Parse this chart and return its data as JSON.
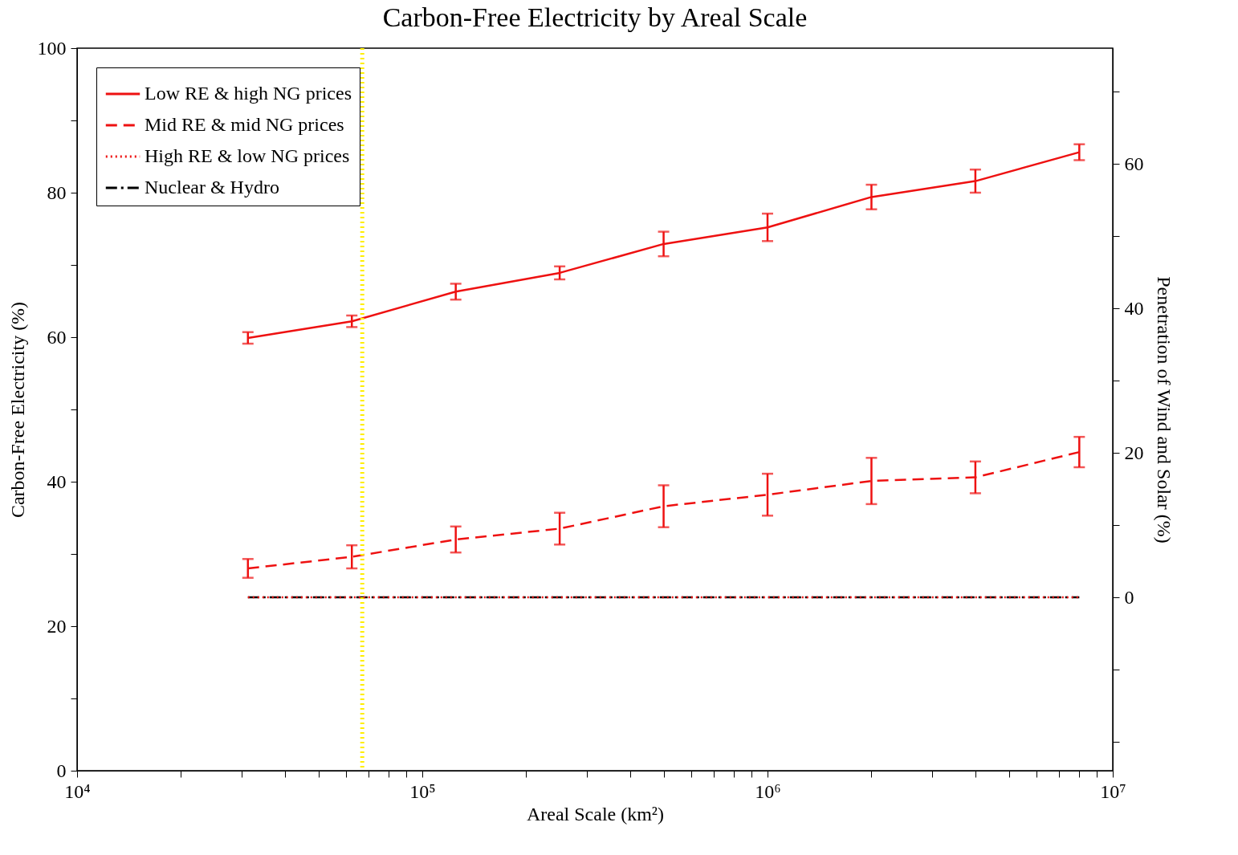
{
  "chart_data": {
    "type": "line",
    "title": "Carbon-Free Electricity by Areal Scale",
    "xlabel": "Areal Scale (km²)",
    "ylabel": "Carbon-Free Electricity (%)",
    "y2label": "Penetration of Wind and Solar (%)",
    "x": [
      31250,
      62500,
      125000,
      250000,
      500000,
      1000000,
      2000000,
      4000000,
      8000000
    ],
    "log": "x",
    "xlim": [
      10000,
      10000000
    ],
    "xticks": [
      {
        "value": 10000,
        "label": "10⁴"
      },
      {
        "value": 20000,
        "label": null
      },
      {
        "value": 30000,
        "label": null
      },
      {
        "value": 40000,
        "label": null
      },
      {
        "value": 50000,
        "label": null
      },
      {
        "value": 60000,
        "label": null
      },
      {
        "value": 70000,
        "label": null
      },
      {
        "value": 80000,
        "label": null
      },
      {
        "value": 90000,
        "label": null
      },
      {
        "value": 100000,
        "label": "10⁵"
      },
      {
        "value": 200000,
        "label": null
      },
      {
        "value": 300000,
        "label": null
      },
      {
        "value": 400000,
        "label": null
      },
      {
        "value": 500000,
        "label": null
      },
      {
        "value": 600000,
        "label": null
      },
      {
        "value": 700000,
        "label": null
      },
      {
        "value": 800000,
        "label": null
      },
      {
        "value": 900000,
        "label": null
      },
      {
        "value": 1000000,
        "label": "10⁶"
      },
      {
        "value": 2000000,
        "label": null
      },
      {
        "value": 3000000,
        "label": null
      },
      {
        "value": 4000000,
        "label": null
      },
      {
        "value": 5000000,
        "label": null
      },
      {
        "value": 6000000,
        "label": null
      },
      {
        "value": 7000000,
        "label": null
      },
      {
        "value": 8000000,
        "label": null
      },
      {
        "value": 9000000,
        "label": null
      },
      {
        "value": 10000000,
        "label": "10⁷"
      }
    ],
    "ylim": [
      0,
      100
    ],
    "yticks": [
      0,
      {
        "value": 10,
        "label": null
      },
      20,
      {
        "value": 30,
        "label": null
      },
      40,
      {
        "value": 50,
        "label": null
      },
      60,
      {
        "value": 70,
        "label": null
      },
      80,
      {
        "value": 90,
        "label": null
      },
      100
    ],
    "y2lim": [
      -24,
      76
    ],
    "y2ticks": [
      {
        "value": -20,
        "label": null
      },
      {
        "value": -10,
        "label": null
      },
      0,
      {
        "value": 10,
        "label": null
      },
      20,
      {
        "value": 30,
        "label": null
      },
      40,
      {
        "value": 50,
        "label": null
      },
      60,
      {
        "value": 70,
        "label": null
      }
    ],
    "series": [
      {
        "name": "Low RE & high NG prices",
        "color": "#ee1111",
        "line_style": "solid",
        "values": [
          59.9,
          62.2,
          66.3,
          68.9,
          72.9,
          75.2,
          79.4,
          81.6,
          85.6
        ],
        "errors": [
          0.8,
          0.8,
          1.1,
          0.9,
          1.7,
          1.9,
          1.7,
          1.6,
          1.1
        ]
      },
      {
        "name": "Mid RE  & mid NG prices",
        "color": "#ee1111",
        "line_style": "dashed",
        "values": [
          28.0,
          29.6,
          32.0,
          33.5,
          36.6,
          38.2,
          40.1,
          40.6,
          44.1
        ],
        "errors": [
          1.3,
          1.6,
          1.8,
          2.2,
          2.9,
          2.9,
          3.2,
          2.2,
          2.1
        ]
      },
      {
        "name": "High RE & low NG prices",
        "color": "#ee1111",
        "line_style": "dotted",
        "axis": "y2",
        "values": [
          0,
          0,
          0,
          0,
          0,
          0,
          0,
          0,
          0
        ]
      },
      {
        "name": "Nuclear & Hydro",
        "color": "#000000",
        "line_style": "dashdot",
        "values": [
          24,
          24,
          24,
          24,
          24,
          24,
          24,
          24,
          24
        ]
      }
    ],
    "ref_lines": [
      {
        "axis": "x",
        "value": 67000,
        "color": "#ffee00",
        "line_style": "dotted"
      }
    ],
    "legend": "top left",
    "grid": false
  }
}
